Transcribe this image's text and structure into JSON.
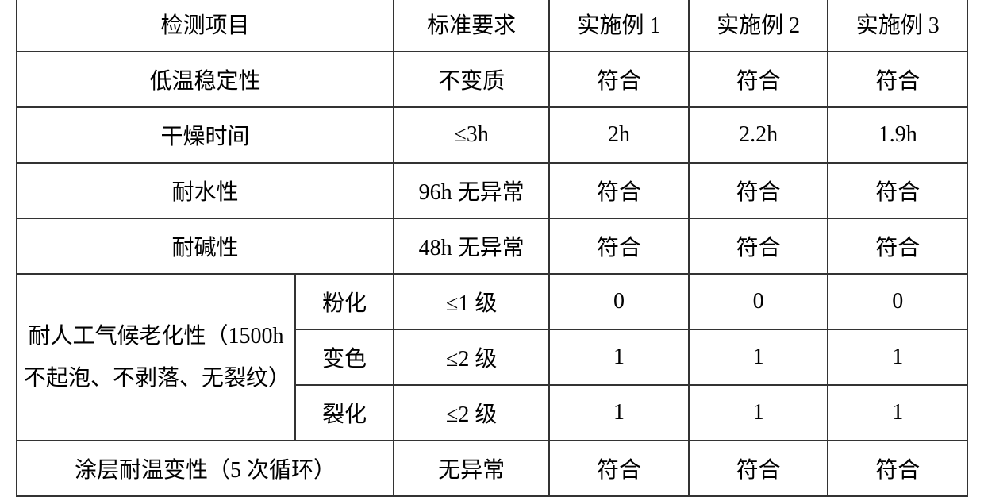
{
  "table": {
    "headers": {
      "item": "检测项目",
      "standard": "标准要求",
      "ex1": "实施例 1",
      "ex2": "实施例 2",
      "ex3": "实施例 3"
    },
    "rows": {
      "low_temp": {
        "item": "低温稳定性",
        "standard": "不变质",
        "ex1": "符合",
        "ex2": "符合",
        "ex3": "符合"
      },
      "dry_time": {
        "item": "干燥时间",
        "standard": "≤3h",
        "ex1": "2h",
        "ex2": "2.2h",
        "ex3": "1.9h"
      },
      "water_resist": {
        "item": "耐水性",
        "standard": "96h 无异常",
        "ex1": "符合",
        "ex2": "符合",
        "ex3": "符合"
      },
      "alkali_resist": {
        "item": "耐碱性",
        "standard": "48h 无异常",
        "ex1": "符合",
        "ex2": "符合",
        "ex3": "符合"
      },
      "weather_group_label": "耐人工气候老化性（1500h 不起泡、不剥落、无裂纹）",
      "weather_chalking": {
        "sub": "粉化",
        "standard": "≤1 级",
        "ex1": "0",
        "ex2": "0",
        "ex3": "0"
      },
      "weather_discolor": {
        "sub": "变色",
        "standard": "≤2 级",
        "ex1": "1",
        "ex2": "1",
        "ex3": "1"
      },
      "weather_cracking": {
        "sub": "裂化",
        "standard": "≤2 级",
        "ex1": "1",
        "ex2": "1",
        "ex3": "1"
      },
      "temp_change": {
        "item": "涂层耐温变性（5 次循环）",
        "standard": "无异常",
        "ex1": "符合",
        "ex2": "符合",
        "ex3": "符合"
      }
    },
    "styling": {
      "border_color": "#333333",
      "border_width": 2,
      "background_color": "#ffffff",
      "text_color": "#000000",
      "font_size": 28,
      "font_family": "SimSun"
    }
  }
}
